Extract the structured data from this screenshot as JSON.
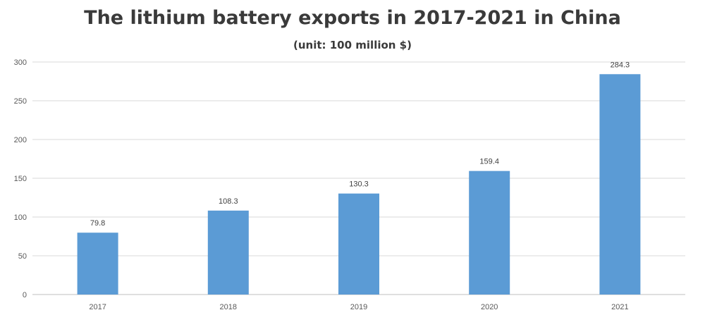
{
  "chart_data": {
    "type": "bar",
    "title": "The lithium battery exports in 2017-2021 in China",
    "subtitle": "(unit: 100 million $)",
    "categories": [
      "2017",
      "2018",
      "2019",
      "2020",
      "2021"
    ],
    "values": [
      79.8,
      108.3,
      130.3,
      159.4,
      284.3
    ],
    "data_labels": [
      "79.8",
      "108.3",
      "130.3",
      "159.4",
      "284.3"
    ],
    "ylim": [
      0,
      300
    ],
    "yticks": [
      0,
      50,
      100,
      150,
      200,
      250,
      300
    ],
    "grid": true,
    "legend": "none",
    "colors": {
      "bar": "#5b9bd5",
      "grid": "#d9d9d9",
      "axis": "#bfbfbf"
    }
  }
}
